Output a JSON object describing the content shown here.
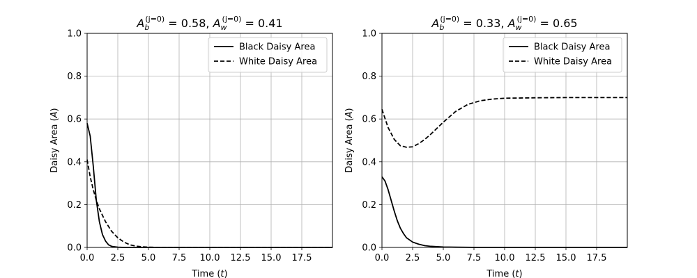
{
  "chart_data": [
    {
      "type": "line",
      "title": {
        "a_label": "A",
        "a_sub": "b",
        "a_sup": "(j=0)",
        "a_value": " = 0.58, ",
        "w_label": "A",
        "w_sub": "w",
        "w_sup": "(j=0)",
        "w_value": " = 0.41"
      },
      "xlabel": {
        "prefix": "Time (",
        "var": "t",
        "suffix": ")"
      },
      "ylabel": {
        "prefix": "Daisy Area (",
        "var": "A",
        "suffix": ")"
      },
      "xlim": [
        0,
        20
      ],
      "ylim": [
        0,
        1
      ],
      "xticks": [
        0,
        2.5,
        5,
        7.5,
        10,
        12.5,
        15,
        17.5
      ],
      "xtick_labels": [
        "0.0",
        "2.5",
        "5.0",
        "7.5",
        "10.0",
        "12.5",
        "15.0",
        "17.5"
      ],
      "yticks": [
        0,
        0.2,
        0.4,
        0.6,
        0.8,
        1.0
      ],
      "ytick_labels": [
        "0.0",
        "0.2",
        "0.4",
        "0.6",
        "0.8",
        "1.0"
      ],
      "grid": true,
      "legend": "top-right",
      "series": [
        {
          "name": "Black Daisy Area",
          "style": "solid",
          "color": "#000000",
          "x": [
            0,
            0.25,
            0.5,
            0.75,
            1.0,
            1.25,
            1.5,
            1.75,
            2.0,
            2.5,
            3.0,
            4.0,
            5.0,
            10.0,
            15.0,
            20.0
          ],
          "y": [
            0.58,
            0.52,
            0.38,
            0.22,
            0.12,
            0.06,
            0.03,
            0.012,
            0.005,
            0.001,
            0,
            0,
            0,
            0,
            0,
            0
          ]
        },
        {
          "name": "White Daisy Area",
          "style": "dashed",
          "color": "#000000",
          "x": [
            0,
            0.25,
            0.5,
            0.75,
            1.0,
            1.5,
            2.0,
            2.5,
            3.0,
            3.5,
            4.0,
            4.5,
            5.0,
            6.0,
            10.0,
            15.0,
            20.0
          ],
          "y": [
            0.41,
            0.33,
            0.27,
            0.22,
            0.18,
            0.12,
            0.075,
            0.045,
            0.025,
            0.012,
            0.006,
            0.003,
            0.001,
            0,
            0,
            0,
            0
          ]
        }
      ]
    },
    {
      "type": "line",
      "title": {
        "a_label": "A",
        "a_sub": "b",
        "a_sup": "(j=0)",
        "a_value": " = 0.33, ",
        "w_label": "A",
        "w_sub": "w",
        "w_sup": "(j=0)",
        "w_value": " = 0.65"
      },
      "xlabel": {
        "prefix": "Time (",
        "var": "t",
        "suffix": ")"
      },
      "ylabel": {
        "prefix": "Daisy Area (",
        "var": "A",
        "suffix": ")"
      },
      "xlim": [
        0,
        20
      ],
      "ylim": [
        0,
        1
      ],
      "xticks": [
        0,
        2.5,
        5,
        7.5,
        10,
        12.5,
        15,
        17.5
      ],
      "xtick_labels": [
        "0.0",
        "2.5",
        "5.0",
        "7.5",
        "10.0",
        "12.5",
        "15.0",
        "17.5"
      ],
      "yticks": [
        0,
        0.2,
        0.4,
        0.6,
        0.8,
        1.0
      ],
      "ytick_labels": [
        "0.0",
        "0.2",
        "0.4",
        "0.6",
        "0.8",
        "1.0"
      ],
      "grid": true,
      "legend": "top-right",
      "series": [
        {
          "name": "Black Daisy Area",
          "style": "solid",
          "color": "#000000",
          "x": [
            0,
            0.25,
            0.5,
            0.75,
            1.0,
            1.25,
            1.5,
            1.75,
            2.0,
            2.5,
            3.0,
            3.5,
            4.0,
            5.0,
            6.0,
            8.0,
            10.0,
            15.0,
            20.0
          ],
          "y": [
            0.33,
            0.31,
            0.27,
            0.22,
            0.17,
            0.125,
            0.09,
            0.065,
            0.045,
            0.025,
            0.015,
            0.008,
            0.005,
            0.002,
            0.001,
            0,
            0,
            0,
            0
          ]
        },
        {
          "name": "White Daisy Area",
          "style": "dashed",
          "color": "#000000",
          "x": [
            0,
            0.5,
            1.0,
            1.5,
            2.0,
            2.5,
            3.0,
            3.5,
            4.0,
            5.0,
            6.0,
            7.0,
            8.0,
            9.0,
            10.0,
            12.5,
            15.0,
            17.5,
            20.0
          ],
          "y": [
            0.645,
            0.56,
            0.505,
            0.475,
            0.468,
            0.47,
            0.485,
            0.505,
            0.53,
            0.585,
            0.635,
            0.668,
            0.685,
            0.693,
            0.697,
            0.699,
            0.7,
            0.7,
            0.7
          ]
        }
      ]
    }
  ]
}
